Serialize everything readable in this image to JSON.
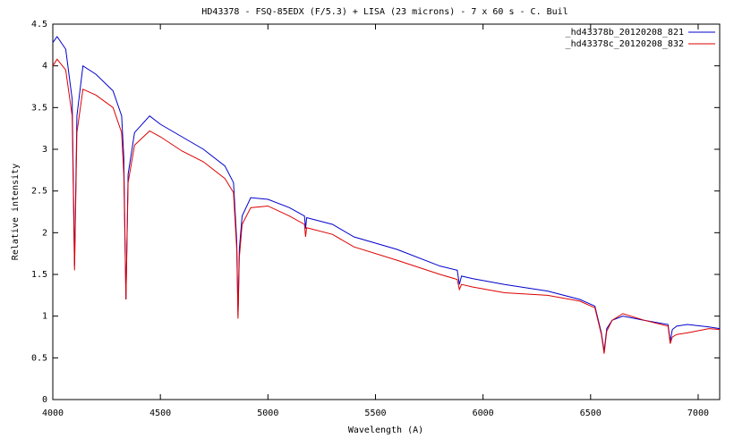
{
  "chart_data": {
    "type": "line",
    "title": "HD43378 - FSQ-85EDX (F/5.3) + LISA (23 microns) - 7 x 60 s - C. Buil",
    "x_label": "Wavelength (A)",
    "y_label": "Relative intensity",
    "x": [
      4000,
      4020,
      4060,
      4090,
      4101,
      4112,
      4140,
      4200,
      4280,
      4320,
      4330,
      4340,
      4350,
      4380,
      4450,
      4500,
      4600,
      4700,
      4800,
      4840,
      4855,
      4861,
      4867,
      4880,
      4920,
      5000,
      5100,
      5170,
      5175,
      5180,
      5300,
      5400,
      5600,
      5800,
      5880,
      5890,
      5900,
      5950,
      6100,
      6300,
      6450,
      6520,
      6550,
      6563,
      6575,
      6600,
      6650,
      6750,
      6860,
      6870,
      6880,
      6900,
      6950,
      7050,
      7100
    ],
    "series": [
      {
        "name": "_hd43378b_20120208_821",
        "color": "#0000cc",
        "values": [
          4.28,
          4.35,
          4.2,
          3.6,
          1.6,
          3.4,
          4.0,
          3.9,
          3.7,
          3.4,
          2.9,
          1.2,
          2.7,
          3.2,
          3.4,
          3.3,
          3.15,
          3.0,
          2.8,
          2.6,
          1.9,
          1.0,
          1.8,
          2.2,
          2.42,
          2.4,
          2.3,
          2.2,
          2.05,
          2.18,
          2.1,
          1.95,
          1.8,
          1.6,
          1.55,
          1.38,
          1.48,
          1.45,
          1.38,
          1.3,
          1.2,
          1.12,
          0.8,
          0.58,
          0.85,
          0.95,
          1.0,
          0.95,
          0.9,
          0.7,
          0.84,
          0.88,
          0.9,
          0.87,
          0.85
        ]
      },
      {
        "name": "_hd43378c_20120208_832",
        "color": "#dd0000",
        "values": [
          4.0,
          4.08,
          3.95,
          3.4,
          1.55,
          3.2,
          3.72,
          3.65,
          3.5,
          3.2,
          2.7,
          1.2,
          2.6,
          3.05,
          3.22,
          3.15,
          2.98,
          2.85,
          2.65,
          2.48,
          1.8,
          0.97,
          1.7,
          2.1,
          2.3,
          2.32,
          2.2,
          2.1,
          1.95,
          2.06,
          1.98,
          1.83,
          1.67,
          1.5,
          1.44,
          1.32,
          1.38,
          1.35,
          1.28,
          1.25,
          1.18,
          1.1,
          0.78,
          0.55,
          0.82,
          0.95,
          1.03,
          0.95,
          0.88,
          0.67,
          0.75,
          0.78,
          0.8,
          0.85,
          0.84
        ]
      }
    ],
    "xlim": [
      4000,
      7100
    ],
    "xticks": [
      4000,
      4500,
      5000,
      5500,
      6000,
      6500,
      7000
    ],
    "ylim": [
      0,
      4.5
    ],
    "yticks": [
      0,
      0.5,
      1,
      1.5,
      2,
      2.5,
      3,
      3.5,
      4,
      4.5
    ],
    "legend": "top-right",
    "grid": false
  }
}
